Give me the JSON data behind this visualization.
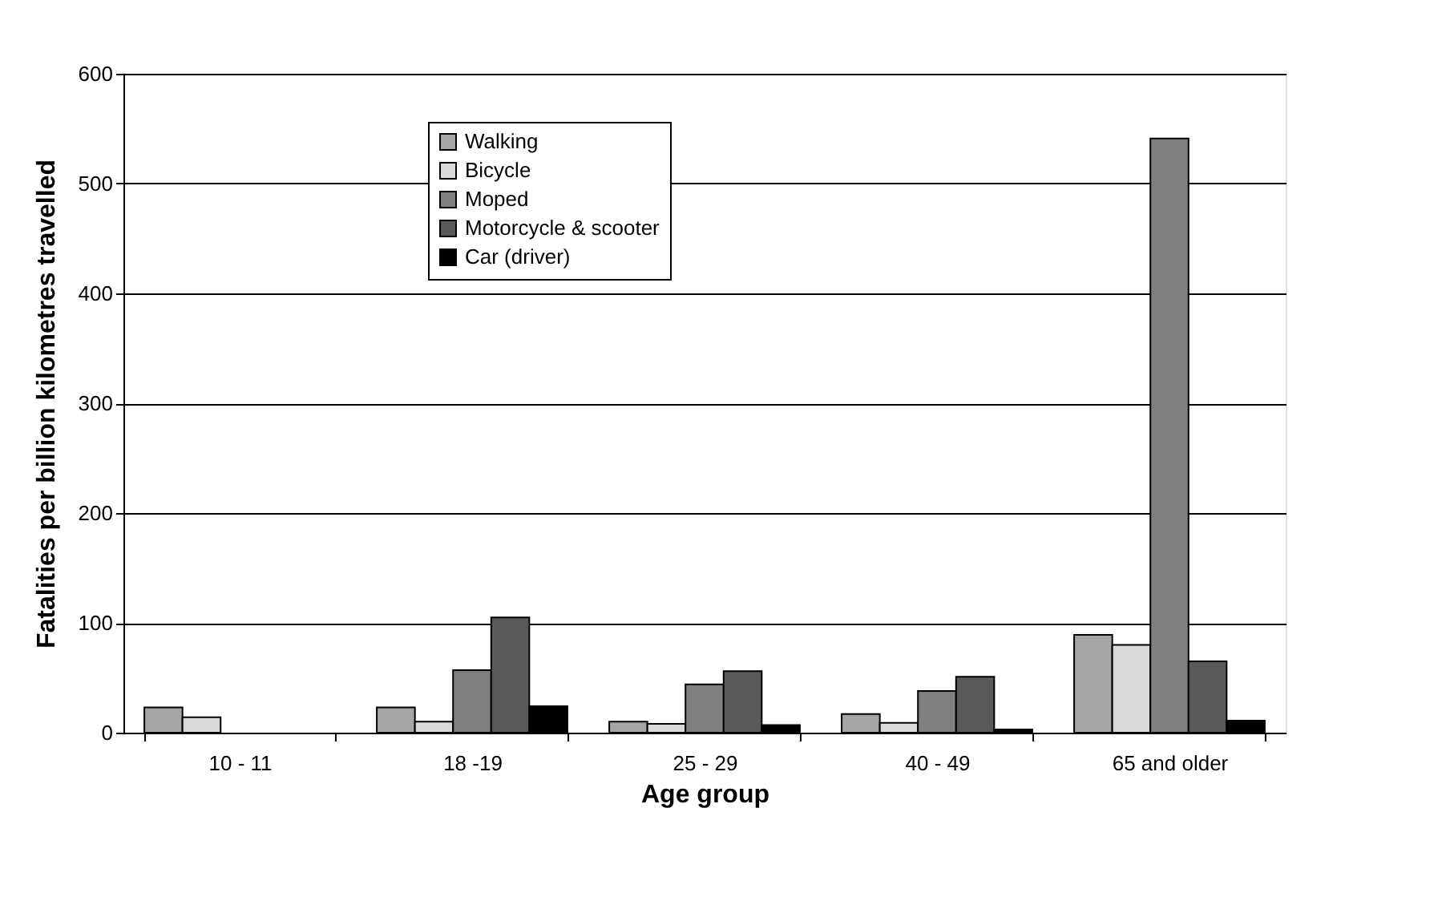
{
  "chart_data": {
    "type": "bar",
    "xlabel": "Age group",
    "ylabel": "Fatalities per billion kilometres travelled",
    "categories": [
      "10 - 11",
      "18 -19",
      "25 - 29",
      "40 - 49",
      "65 and older"
    ],
    "series": [
      {
        "name": "Walking",
        "color": "#a6a6a6",
        "values": [
          23,
          23,
          10,
          17,
          89
        ]
      },
      {
        "name": "Bicycle",
        "color": "#d9d9d9",
        "values": [
          14,
          10,
          8,
          9,
          80
        ]
      },
      {
        "name": "Moped",
        "color": "#7f7f7f",
        "values": [
          null,
          57,
          44,
          38,
          541
        ]
      },
      {
        "name": "Motorcycle & scooter",
        "color": "#595959",
        "values": [
          null,
          105,
          56,
          51,
          65
        ]
      },
      {
        "name": "Car (driver)",
        "color": "#000000",
        "values": [
          null,
          24,
          7,
          3,
          11
        ]
      }
    ],
    "ylim": [
      0,
      600
    ],
    "yticks": [
      0,
      100,
      200,
      300,
      400,
      500,
      600
    ],
    "grid": "y",
    "legend": "top left"
  }
}
